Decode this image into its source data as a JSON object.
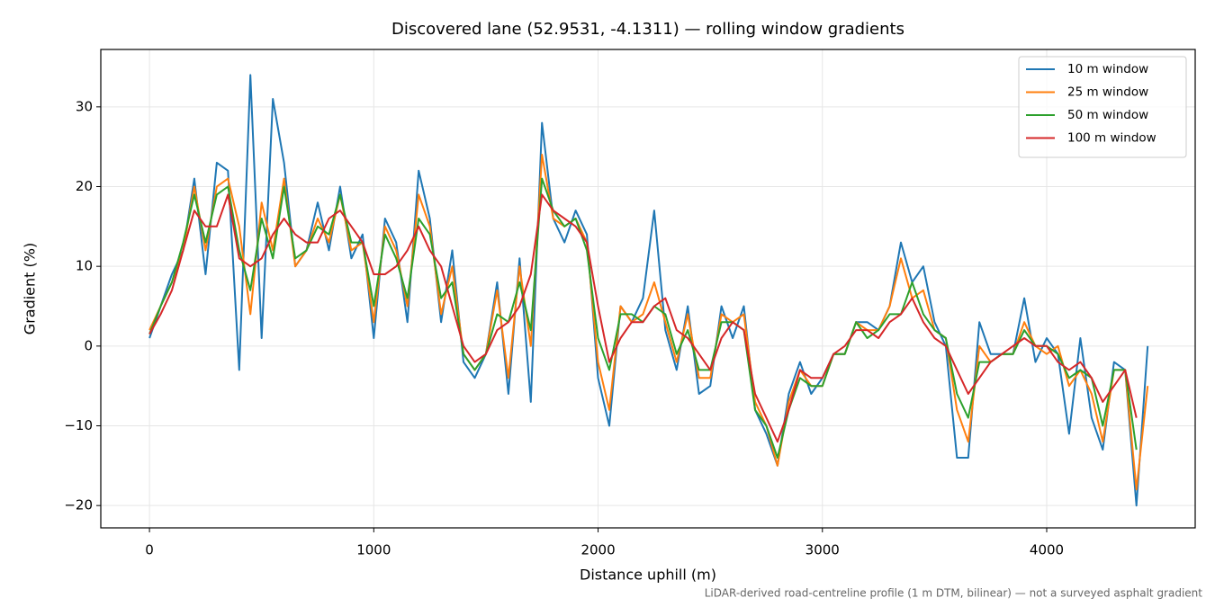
{
  "chart_data": {
    "type": "line",
    "title": "Discovered lane (52.9531, -4.1311) — rolling window gradients",
    "xlabel": "Distance uphill (m)",
    "ylabel": "Gradient (%)",
    "footnote": "LiDAR-derived road-centreline profile (1 m DTM, bilinear) — not a surveyed asphalt gradient",
    "x": [
      0,
      50,
      100,
      150,
      200,
      250,
      300,
      350,
      400,
      450,
      500,
      550,
      600,
      650,
      700,
      750,
      800,
      850,
      900,
      950,
      1000,
      1050,
      1100,
      1150,
      1200,
      1250,
      1300,
      1350,
      1400,
      1450,
      1500,
      1550,
      1600,
      1650,
      1700,
      1750,
      1800,
      1850,
      1900,
      1950,
      2000,
      2050,
      2100,
      2150,
      2200,
      2250,
      2300,
      2350,
      2400,
      2450,
      2500,
      2550,
      2600,
      2650,
      2700,
      2750,
      2800,
      2850,
      2900,
      2950,
      3000,
      3050,
      3100,
      3150,
      3200,
      3250,
      3300,
      3350,
      3400,
      3450,
      3500,
      3550,
      3600,
      3650,
      3700,
      3750,
      3800,
      3850,
      3900,
      3950,
      4000,
      4050,
      4100,
      4150,
      4200,
      4250,
      4300,
      4350,
      4400,
      4450
    ],
    "series": [
      {
        "name": "10 m window",
        "color": "#1f77b4",
        "values": [
          1,
          5,
          9,
          12,
          21,
          9,
          23,
          22,
          -3,
          34,
          1,
          31,
          23,
          10,
          12,
          18,
          12,
          20,
          11,
          14,
          1,
          16,
          13,
          3,
          22,
          16,
          3,
          12,
          -2,
          -4,
          -1,
          8,
          -6,
          11,
          -7,
          28,
          16,
          13,
          17,
          14,
          -4,
          -10,
          5,
          3,
          6,
          17,
          2,
          -3,
          5,
          -6,
          -5,
          5,
          1,
          5,
          -8,
          -11,
          -15,
          -6,
          -2,
          -6,
          -4,
          -1,
          -1,
          3,
          3,
          2,
          5,
          13,
          8,
          10,
          3,
          0,
          -14,
          -14,
          3,
          -1,
          -1,
          -1,
          6,
          -2,
          1,
          -1,
          -11,
          1,
          -9,
          -13,
          -2,
          -3,
          -20,
          0
        ]
      },
      {
        "name": "25 m window",
        "color": "#ff7f0e",
        "values": [
          2,
          5,
          8,
          12,
          20,
          12,
          20,
          21,
          15,
          4,
          18,
          12,
          21,
          10,
          12,
          16,
          13,
          19,
          12,
          13,
          3,
          15,
          12,
          5,
          19,
          15,
          4,
          10,
          -1,
          -3,
          -1,
          7,
          -4,
          10,
          0,
          24,
          16,
          15,
          16,
          13,
          -2,
          -8,
          5,
          3,
          4,
          8,
          3,
          -2,
          4,
          -4,
          -4,
          4,
          3,
          4,
          -7,
          -10,
          -15,
          -7,
          -3,
          -5,
          -5,
          -1,
          -1,
          3,
          2,
          2,
          5,
          11,
          6,
          7,
          2,
          1,
          -8,
          -12,
          0,
          -2,
          -1,
          -1,
          3,
          0,
          -1,
          0,
          -5,
          -3,
          -6,
          -12,
          -3,
          -3,
          -18,
          -5
        ]
      },
      {
        "name": "50 m window",
        "color": "#2ca02c",
        "values": [
          1.5,
          5,
          8,
          13,
          19,
          13,
          19,
          20,
          12,
          7,
          16,
          11,
          20,
          11,
          12,
          15,
          14,
          19,
          13,
          13,
          5,
          14,
          11,
          6,
          16,
          14,
          6,
          8,
          -1,
          -3,
          -1,
          4,
          3,
          8,
          2,
          21,
          17,
          15,
          16,
          12,
          1,
          -3,
          4,
          4,
          3,
          5,
          4,
          -1,
          2,
          -3,
          -3,
          3,
          3,
          2,
          -8,
          -10,
          -14,
          -8,
          -4,
          -5,
          -5,
          -1,
          -1,
          3,
          1,
          2,
          4,
          4,
          8,
          4,
          2,
          1,
          -6,
          -9,
          -2,
          -2,
          -1,
          -1,
          2,
          0,
          0,
          -1,
          -4,
          -3,
          -4,
          -10,
          -3,
          -3,
          -13,
          null
        ]
      },
      {
        "name": "100 m window",
        "color": "#d62728",
        "values": [
          1.5,
          4,
          7,
          12,
          17,
          15,
          15,
          19,
          11,
          10,
          11,
          14,
          16,
          14,
          13,
          13,
          16,
          17,
          15,
          13,
          9,
          9,
          10,
          12,
          15,
          12,
          10,
          5,
          0,
          -2,
          -1,
          2,
          3,
          5,
          9,
          19,
          17,
          16,
          15,
          13,
          5,
          -2,
          1,
          3,
          3,
          5,
          6,
          2,
          1,
          -1,
          -3,
          1,
          3,
          2,
          -6,
          -9,
          -12,
          -8,
          -3,
          -4,
          -4,
          -1,
          0,
          2,
          2,
          1,
          3,
          4,
          6,
          3,
          1,
          0,
          -3,
          -6,
          -4,
          -2,
          -1,
          0,
          1,
          0,
          0,
          -2,
          -3,
          -2,
          -4,
          -7,
          -5,
          -3,
          -9,
          null
        ]
      }
    ],
    "xlim": [
      -217,
      4662
    ],
    "ylim": [
      -22.8,
      37.2
    ],
    "xticks": [
      0,
      1000,
      2000,
      3000,
      4000
    ],
    "yticks": [
      {
        "value": -20,
        "label": "−20"
      },
      {
        "value": -10,
        "label": "−10"
      },
      0,
      10,
      20,
      30
    ],
    "grid": true,
    "legend": "upper right"
  }
}
